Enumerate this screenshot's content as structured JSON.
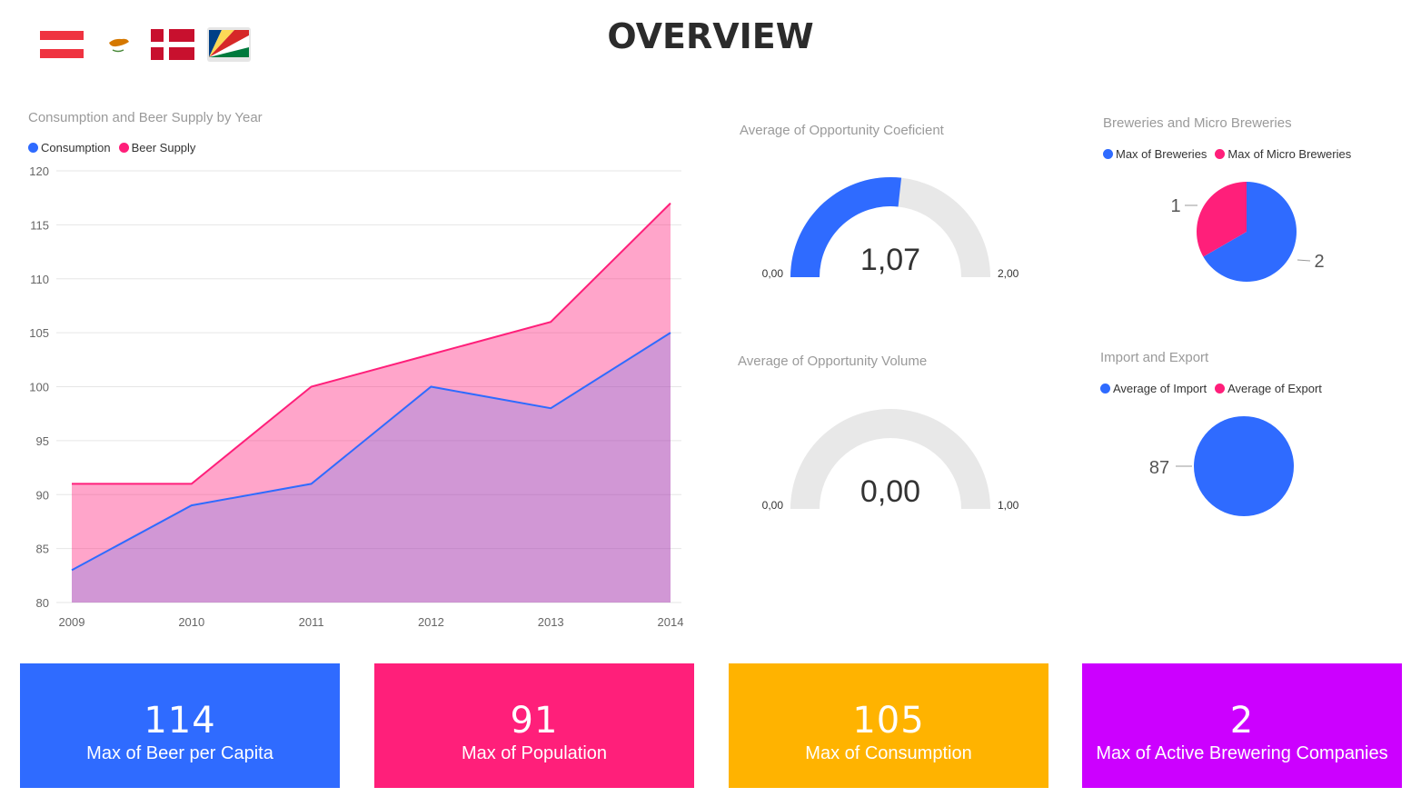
{
  "page": {
    "title": "OVERVIEW"
  },
  "flags": [
    {
      "name": "Austria",
      "icon": "austria-flag-icon"
    },
    {
      "name": "Cyprus",
      "icon": "cyprus-flag-icon"
    },
    {
      "name": "Denmark",
      "icon": "denmark-flag-icon"
    },
    {
      "name": "Seychelles",
      "icon": "seychelles-flag-icon"
    }
  ],
  "colors": {
    "blue": "#2f6bff",
    "pink": "#ff1f7a",
    "amber": "#ffb300",
    "purple": "#cc00ff",
    "gray": "#e8e8e8"
  },
  "line_chart": {
    "title": "Consumption and Beer Supply by Year",
    "legend": [
      "Consumption",
      "Beer Supply"
    ],
    "y_ticks": [
      "120",
      "115",
      "110",
      "105",
      "100",
      "95",
      "90",
      "85",
      "80"
    ],
    "x_ticks": [
      "2009",
      "2010",
      "2011",
      "2012",
      "2013",
      "2014"
    ]
  },
  "gauge1": {
    "title": "Average of Opportunity Coeficient",
    "value_label": "1,07",
    "min_label": "0,00",
    "max_label": "2,00"
  },
  "gauge2": {
    "title": "Average of Opportunity Volume",
    "value_label": "0,00",
    "min_label": "0,00",
    "max_label": "1,00"
  },
  "pie1": {
    "title": "Breweries and Micro Breweries",
    "legend": [
      "Max of Breweries",
      "Max of Micro Breweries"
    ],
    "labels": [
      "1",
      "2"
    ]
  },
  "pie2": {
    "title": "Import and Export",
    "legend": [
      "Average of Import",
      "Average of Export"
    ],
    "labels": [
      "87"
    ]
  },
  "kpis": [
    {
      "value": "114",
      "label": "Max of Beer per Capita"
    },
    {
      "value": "91",
      "label": "Max of Population"
    },
    {
      "value": "105",
      "label": "Max of Consumption"
    },
    {
      "value": "2",
      "label": "Max of Active Brewering Companies"
    }
  ],
  "chart_data": [
    {
      "type": "area",
      "title": "Consumption and Beer Supply by Year",
      "x": [
        2009,
        2010,
        2011,
        2012,
        2013,
        2014
      ],
      "series": [
        {
          "name": "Consumption",
          "values": [
            83,
            89,
            91,
            100,
            98,
            105
          ],
          "color": "#2f6bff"
        },
        {
          "name": "Beer Supply",
          "values": [
            91,
            91,
            100,
            103,
            106,
            117
          ],
          "color": "#ff1f7a"
        }
      ],
      "ylim": [
        80,
        120
      ],
      "grid": true,
      "legend_position": "top-left"
    },
    {
      "type": "gauge",
      "title": "Average of Opportunity Coeficient",
      "value": 1.07,
      "min": 0,
      "max": 2
    },
    {
      "type": "gauge",
      "title": "Average of Opportunity Volume",
      "value": 0,
      "min": 0,
      "max": 1
    },
    {
      "type": "pie",
      "title": "Breweries and Micro Breweries",
      "categories": [
        "Max of Breweries",
        "Max of Micro Breweries"
      ],
      "values": [
        2,
        1
      ],
      "legend_position": "top-left"
    },
    {
      "type": "pie",
      "title": "Import and Export",
      "categories": [
        "Average of Import",
        "Average of Export"
      ],
      "values": [
        87,
        0
      ],
      "legend_position": "top-left"
    }
  ]
}
